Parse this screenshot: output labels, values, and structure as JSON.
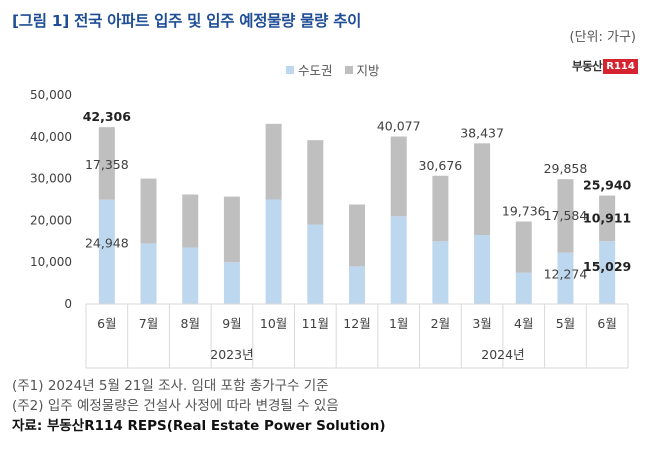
{
  "title": "[그림 1] 전국 아파트 입주 및 입주 예정물량 물량 추이",
  "unit": "(단위: 가구)",
  "logo": {
    "text": "부동산",
    "badge": "R114"
  },
  "notes": [
    "(주1) 2024년 5월 21일 조사. 임대 포함 총가구수 기준",
    "(주2) 입주 예정물량은 건설사 사정에 따라 변경될 수 있음"
  ],
  "source": "자료: 부동산R114 REPS(Real Estate Power Solution)",
  "colors": {
    "capital": "#bdd7ee",
    "regional": "#bfbfbf",
    "axis": "#d9d9d9"
  },
  "chart_data": {
    "type": "bar",
    "stacked": true,
    "legend_position": "top",
    "grid": false,
    "categories": [
      "6월",
      "7월",
      "8월",
      "9월",
      "10월",
      "11월",
      "12월",
      "1월",
      "2월",
      "3월",
      "4월",
      "5월",
      "6월"
    ],
    "groups": [
      {
        "label": "2023년",
        "count": 7
      },
      {
        "label": "2024년",
        "count": 6
      }
    ],
    "ylim": [
      0,
      50000
    ],
    "yticks": [
      "0",
      "10,000",
      "20,000",
      "30,000",
      "40,000",
      "50,000"
    ],
    "series": [
      {
        "name": "수도권",
        "values": [
          24948,
          14500,
          13500,
          10000,
          25000,
          19000,
          9000,
          21000,
          15000,
          16500,
          7500,
          12274,
          15029
        ]
      },
      {
        "name": "지방",
        "values": [
          17358,
          15500,
          12700,
          15700,
          18100,
          20200,
          14800,
          19077,
          15676,
          21937,
          12236,
          17584,
          10911
        ]
      }
    ],
    "totals": [
      42306,
      30000,
      26200,
      25700,
      43100,
      39200,
      23800,
      40077,
      30676,
      38437,
      19736,
      29858,
      25940
    ],
    "labels": [
      {
        "i": 0,
        "kind": "total",
        "text": "42,306",
        "bold": true
      },
      {
        "i": 0,
        "kind": "regional",
        "text": "17,358",
        "bold": false
      },
      {
        "i": 0,
        "kind": "capital",
        "text": "24,948",
        "bold": false
      },
      {
        "i": 7,
        "kind": "total",
        "text": "40,077",
        "bold": false
      },
      {
        "i": 8,
        "kind": "total",
        "text": "30,676",
        "bold": false
      },
      {
        "i": 9,
        "kind": "total",
        "text": "38,437",
        "bold": false
      },
      {
        "i": 10,
        "kind": "total",
        "text": "19,736",
        "bold": false
      },
      {
        "i": 11,
        "kind": "total",
        "text": "29,858",
        "bold": false
      },
      {
        "i": 11,
        "kind": "regional",
        "text": "17,584",
        "bold": false
      },
      {
        "i": 11,
        "kind": "capital",
        "text": "12,274",
        "bold": false
      },
      {
        "i": 12,
        "kind": "total",
        "text": "25,940",
        "bold": true
      },
      {
        "i": 12,
        "kind": "regional",
        "text": "10,911",
        "bold": true
      },
      {
        "i": 12,
        "kind": "capital",
        "text": "15,029",
        "bold": true
      }
    ]
  }
}
